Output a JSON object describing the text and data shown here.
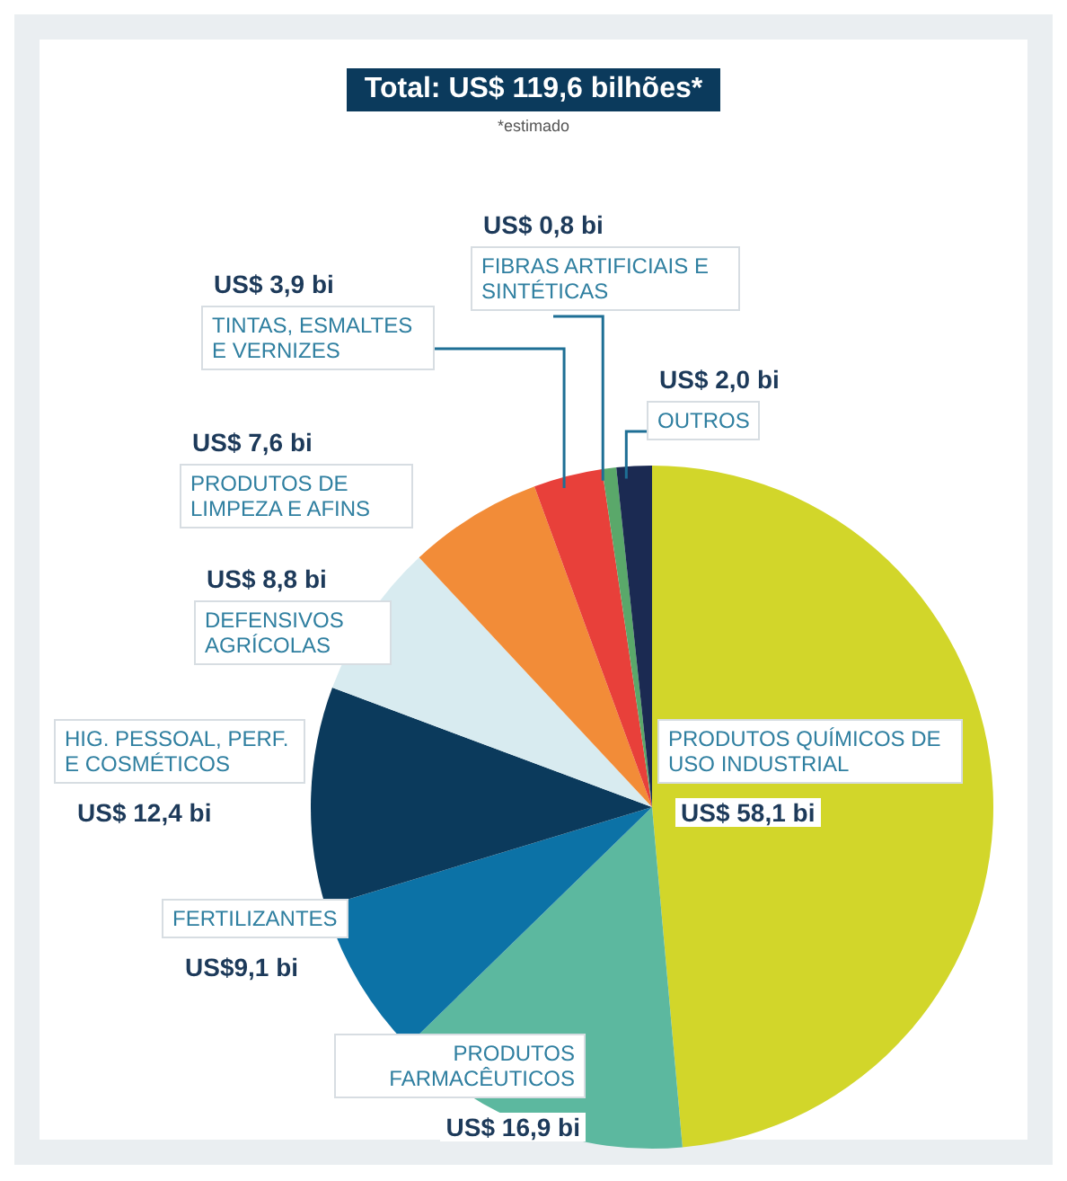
{
  "chart_data": {
    "type": "pie",
    "title": "Total: US$ 119,6 bilhões*",
    "subtitle": "*estimado",
    "categories": [
      "PRODUTOS QUÍMICOS DE USO INDUSTRIAL",
      "PRODUTOS FARMACÊUTICOS",
      "FERTILIZANTES",
      "HIG. PESSOAL, PERF. E COSMÉTICOS",
      "DEFENSIVOS AGRÍCOLAS",
      "PRODUTOS DE LIMPEZA E AFINS",
      "TINTAS, ESMALTES E VERNIZES",
      "FIBRAS ARTIFICIAIS E SINTÉTICAS",
      "OUTROS"
    ],
    "values": [
      58.1,
      16.9,
      9.1,
      12.4,
      8.8,
      7.6,
      3.9,
      0.8,
      2.0
    ],
    "colors": [
      "#d2d62a",
      "#5cb89f",
      "#0c72a6",
      "#0b3a5c",
      "#d8ebf0",
      "#f28c38",
      "#e8403a",
      "#5aa86a",
      "#1b2a52"
    ],
    "value_labels": [
      "US$ 58,1 bi",
      "US$ 16,9 bi",
      "US$9,1 bi",
      "US$ 12,4 bi",
      "US$ 8,8 bi",
      "US$ 7,6 bi",
      "US$ 3,9 bi",
      "US$ 0,8 bi",
      "US$ 2,0 bi"
    ]
  }
}
